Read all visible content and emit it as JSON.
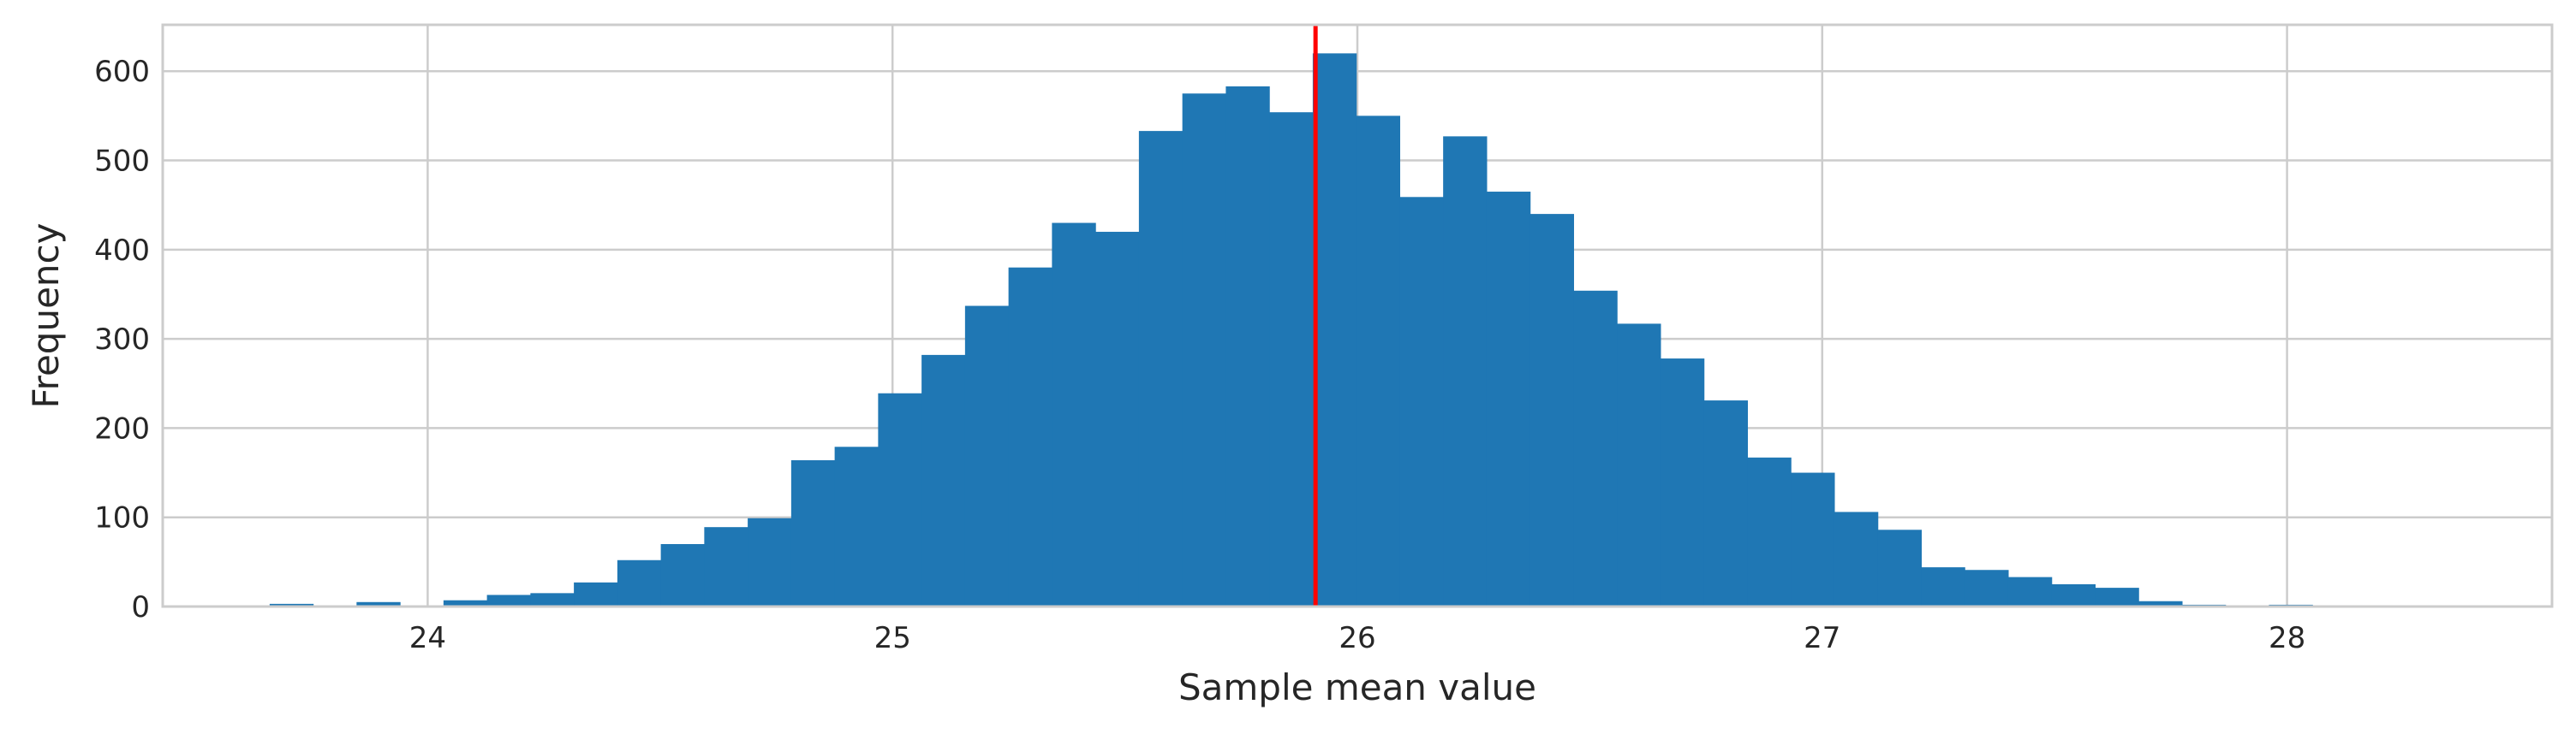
{
  "chart_data": {
    "type": "histogram",
    "title": "",
    "xlabel": "Sample mean value",
    "ylabel": "Frequency",
    "xlim": [
      23.43,
      28.57
    ],
    "ylim": [
      0,
      652
    ],
    "x_ticks": [
      24,
      25,
      26,
      27,
      28
    ],
    "y_ticks": [
      0,
      100,
      200,
      300,
      400,
      500,
      600
    ],
    "grid": true,
    "bar_color": "#1f77b4",
    "reference_line": {
      "x": 25.91,
      "color": "#ff0000"
    },
    "bin_start": 23.66,
    "bin_width": 0.0935,
    "counts": [
      3,
      0,
      5,
      0,
      7,
      13,
      15,
      27,
      52,
      70,
      89,
      99,
      164,
      179,
      239,
      282,
      337,
      380,
      430,
      420,
      533,
      575,
      583,
      554,
      620,
      550,
      459,
      527,
      465,
      440,
      354,
      317,
      278,
      231,
      167,
      150,
      106,
      86,
      44,
      41,
      33,
      25,
      21,
      6,
      2,
      0,
      2,
      1,
      0,
      0
    ]
  }
}
